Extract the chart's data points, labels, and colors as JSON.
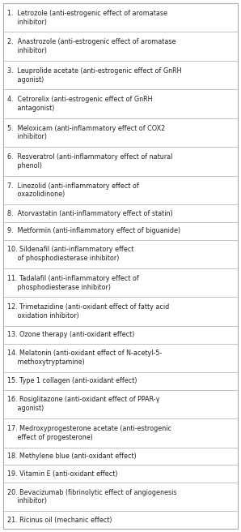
{
  "rows": [
    "1.  Letrozole (anti-estrogenic effect of aromatase\n     inhibitor)",
    "2.  Anastrozole (anti-estrogenic effect of aromatase\n     inhibitor)",
    "3.  Leuprolide acetate (anti-estrogenic effect of GnRH\n     agonist)",
    "4.  Cetrorelix (anti-estrogenic effect of GnRH\n     antagonist)",
    "5.  Meloxicam (anti-inflammatory effect of COX2\n     inhibitor)",
    "6.  Resveratrol (anti-inflammatory effect of natural\n     phenol)",
    "7.  Linezolid (anti-inflammatory effect of\n     oxazolidinone)",
    "8.  Atorvastatin (anti-inflammatory effect of statin)",
    "9.  Metformin (anti-inflammatory effect of biguanide)",
    "10. Sildenafil (anti-inflammatory effect\n     of phosphodiesterase inhibitor)",
    "11. Tadalafil (anti-inflammatory effect of\n     phosphodiesterase inhibitor)",
    "12. Trimetazidine (anti-oxidant effect of fatty acid\n     oxidation inhibitor)",
    "13. Ozone therapy (anti-oxidant effect)",
    "14. Melatonin (anti-oxidant effect of N-acetyl-5-\n     methoxytryptamine)",
    "15. Type 1 collagen (anti-oxidant effect)",
    "16. Rosiglitazone (anti-oxidant effect of PPAR-γ\n     agonist)",
    "17. Medroxyprogesterone acetate (anti-estrogenic\n     effect of progesterone)",
    "18. Methylene blue (anti-oxidant effect)",
    "19. Vitamin E (anti-oxidant effect)",
    "20. Bevacizumab (fibrinolytic effect of angiogenesis\n     inhibitor)",
    "21. Ricinus oil (mechanic effect)"
  ],
  "row_line_counts": [
    2,
    2,
    2,
    2,
    2,
    2,
    2,
    1,
    1,
    2,
    2,
    2,
    1,
    2,
    1,
    2,
    2,
    1,
    1,
    2,
    1
  ],
  "bg_color": "#ffffff",
  "border_color": "#aaaaaa",
  "text_color": "#222222",
  "font_size": 5.8
}
